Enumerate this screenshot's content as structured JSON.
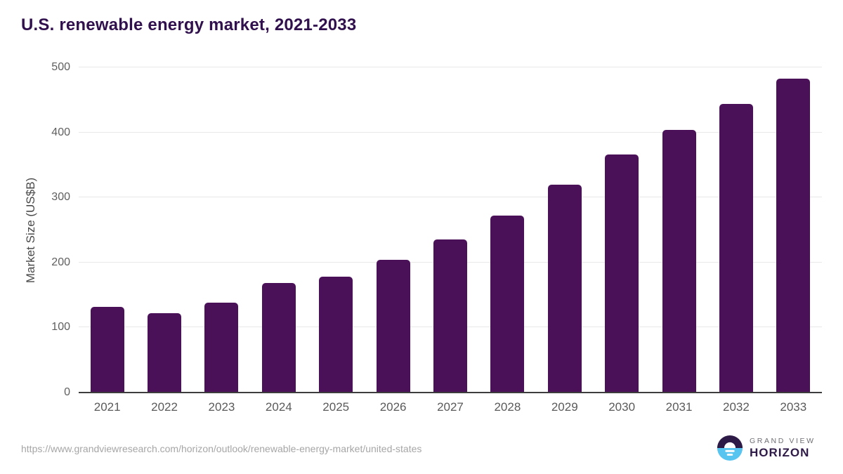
{
  "header": {
    "title": "U.S. renewable energy market, 2021-2033"
  },
  "chart_data": {
    "type": "bar",
    "title": "U.S. renewable energy market, 2021-2033",
    "categories": [
      "2021",
      "2022",
      "2023",
      "2024",
      "2025",
      "2026",
      "2027",
      "2028",
      "2029",
      "2030",
      "2031",
      "2032",
      "2033"
    ],
    "values": [
      132,
      122,
      138,
      169,
      178,
      204,
      235,
      272,
      320,
      366,
      404,
      444,
      483
    ],
    "xlabel": "",
    "ylabel": "Market Size (US$B)",
    "ylim": [
      0,
      500
    ],
    "yticks": [
      0,
      100,
      200,
      300,
      400,
      500
    ],
    "grid": true,
    "legend": false,
    "bar_color": "#4a1158"
  },
  "footer": {
    "source_url": "https://www.grandviewresearch.com/horizon/outlook/renewable-energy-market/united-states",
    "logo": {
      "line1": "GRAND VIEW",
      "line2": "HORIZON"
    }
  },
  "colors": {
    "bar": "#4a1158",
    "grid": "#e8e8e8",
    "axis": "#3d3d3d",
    "title": "#31104e",
    "tick_label": "#5f5f5f",
    "footer_text": "#a6a6a6",
    "logo_purple": "#2e1a47",
    "logo_blue": "#58c4f0",
    "logo_gray": "#6f6f75"
  }
}
